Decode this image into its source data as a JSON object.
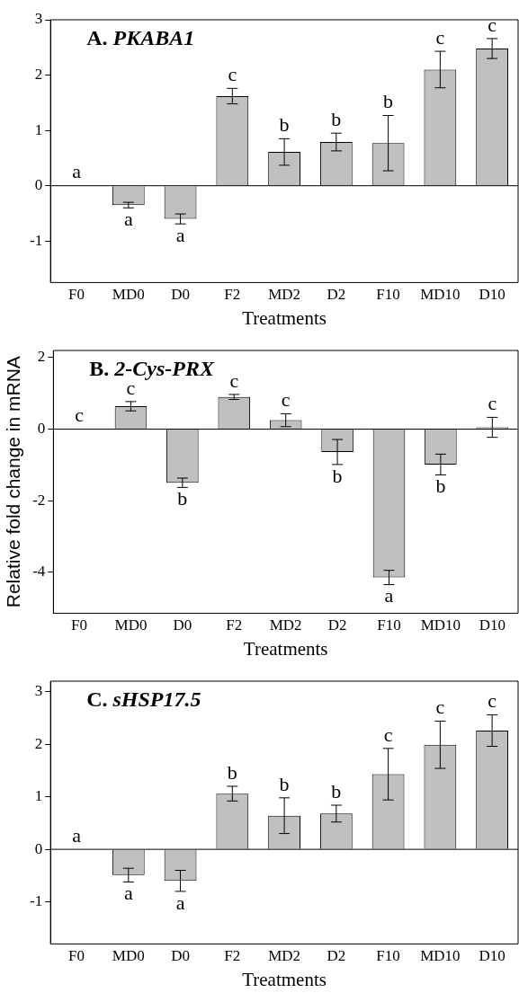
{
  "chart_data": [
    {
      "type": "bar",
      "title": "A. PKABA1",
      "xlabel": "Treatments",
      "categories": [
        "F0",
        "MD0",
        "D0",
        "F2",
        "MD2",
        "D2",
        "F10",
        "MD10",
        "D10"
      ],
      "color": "#c0c0c0",
      "grid": false,
      "values": [
        0,
        -0.35,
        -0.6,
        1.62,
        0.61,
        0.79,
        0.77,
        2.1,
        2.48
      ],
      "errors": [
        null,
        0.05,
        0.09,
        0.14,
        0.24,
        0.16,
        0.5,
        0.33,
        0.18
      ],
      "ylim": [
        -1.75,
        3
      ],
      "yticks": [
        -1,
        0,
        1,
        2,
        3
      ],
      "ref_lines": [
        {
          "axis": "y",
          "value": 0
        }
      ],
      "annotations": [
        "a",
        "a",
        "a",
        "c",
        "b",
        "b",
        "b",
        "c",
        "c"
      ]
    },
    {
      "type": "bar",
      "title": "B. 2-Cys-PRX",
      "xlabel": "Treatments",
      "ylabel": "Relative fold change in mRNA",
      "categories": [
        "F0",
        "MD0",
        "D0",
        "F2",
        "MD2",
        "D2",
        "F10",
        "MD10",
        "D10"
      ],
      "color": "#c0c0c0",
      "grid": false,
      "values": [
        0,
        0.64,
        -1.5,
        0.9,
        0.25,
        -0.64,
        -4.15,
        -0.99,
        0.05
      ],
      "errors": [
        null,
        0.13,
        0.13,
        0.07,
        0.18,
        0.35,
        0.2,
        0.29,
        0.28
      ],
      "ylim": [
        -5.15,
        2.2
      ],
      "yticks": [
        -4,
        -2,
        0,
        2
      ],
      "ref_lines": [
        {
          "axis": "y",
          "value": 0
        }
      ],
      "annotations": [
        "c",
        "c",
        "b",
        "c",
        "c",
        "b",
        "a",
        "b",
        "c"
      ]
    },
    {
      "type": "bar",
      "title": "C. sHSP17.5",
      "xlabel": "Treatments",
      "categories": [
        "F0",
        "MD0",
        "D0",
        "F2",
        "MD2",
        "D2",
        "F10",
        "MD10",
        "D10"
      ],
      "color": "#c0c0c0",
      "grid": false,
      "values": [
        0,
        -0.49,
        -0.6,
        1.06,
        0.64,
        0.68,
        1.43,
        1.99,
        2.26
      ],
      "errors": [
        null,
        0.13,
        0.2,
        0.14,
        0.34,
        0.16,
        0.49,
        0.45,
        0.3
      ],
      "ylim": [
        -1.8,
        3.2
      ],
      "yticks": [
        -1,
        0,
        1,
        2,
        3
      ],
      "ref_lines": [
        {
          "axis": "y",
          "value": 0
        }
      ],
      "annotations": [
        "a",
        "a",
        "a",
        "b",
        "b",
        "b",
        "c",
        "c",
        "c"
      ]
    }
  ]
}
